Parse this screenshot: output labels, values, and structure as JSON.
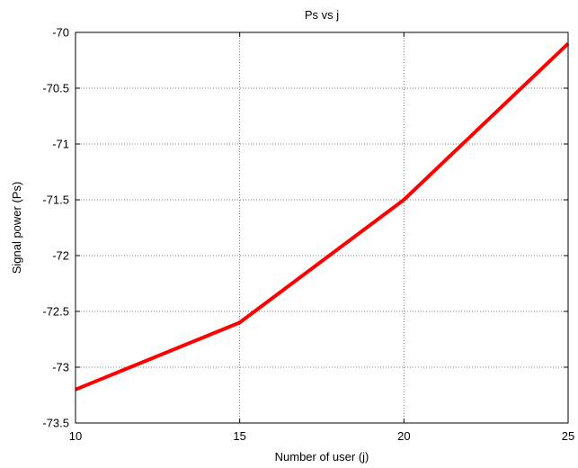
{
  "chart_data": {
    "type": "line",
    "title": "Ps vs j",
    "xlabel": "Number of user (j)",
    "ylabel": "Signal power (Ps)",
    "xlim": [
      10,
      25
    ],
    "ylim": [
      -73.5,
      -70
    ],
    "xticks": [
      10,
      15,
      20,
      25
    ],
    "yticks": [
      -70,
      -70.5,
      -71,
      -71.5,
      -72,
      -72.5,
      -73,
      -73.5
    ],
    "grid": true,
    "series": [
      {
        "x": [
          10,
          15,
          20,
          25
        ],
        "values": [
          -73.2,
          -72.6,
          -71.5,
          -70.1
        ],
        "color": "#ff0000"
      }
    ]
  }
}
